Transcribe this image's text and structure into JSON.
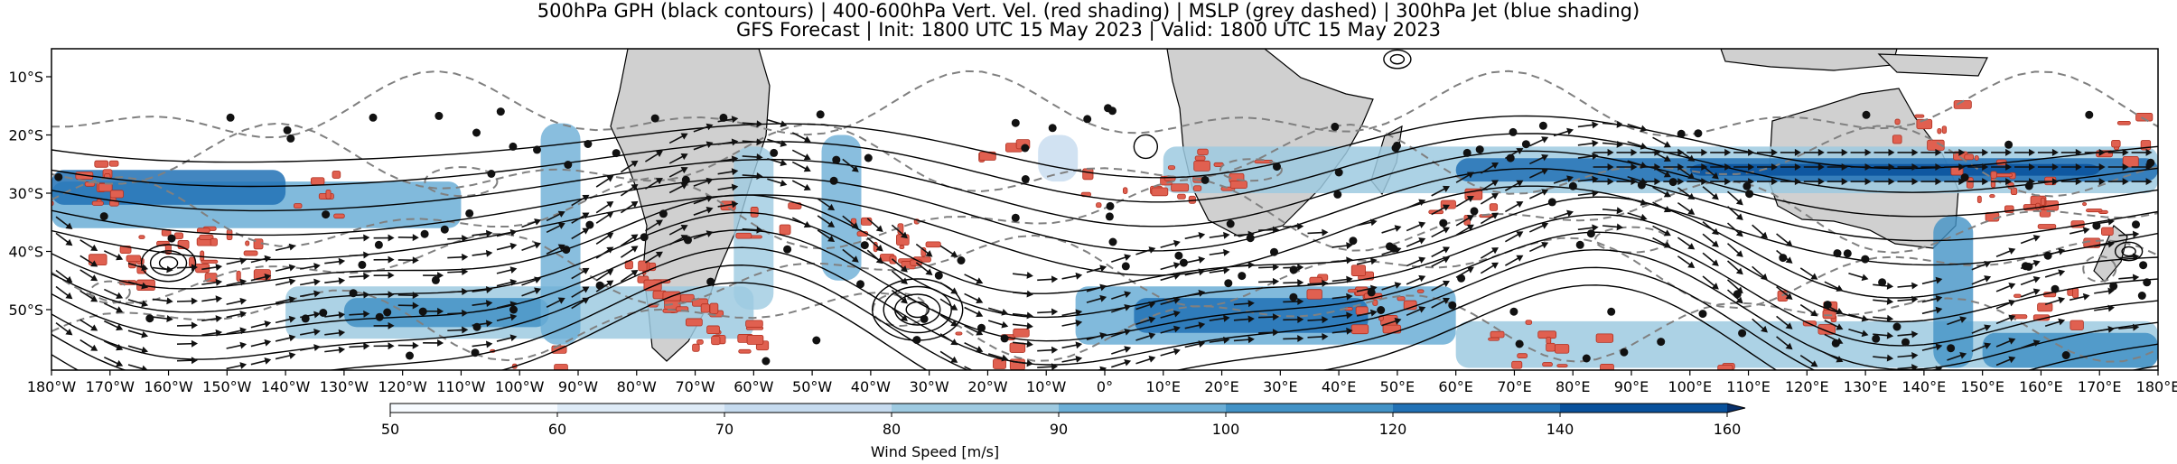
{
  "title_line1": "500hPa GPH (black contours) | 400-600hPa Vert. Vel. (red shading) | MSLP (grey dashed) | 300hPa Jet (blue shading)",
  "title_line2": "GFS Forecast | Init: 1800 UTC 15 May 2023 | Valid: 1800 UTC 15 May 2023",
  "lon_ticks": [
    "180°W",
    "170°W",
    "160°W",
    "150°W",
    "140°W",
    "130°W",
    "120°W",
    "110°W",
    "100°W",
    "90°W",
    "80°W",
    "70°W",
    "60°W",
    "50°W",
    "40°W",
    "30°W",
    "20°W",
    "10°W",
    "0°",
    "10°E",
    "20°E",
    "30°E",
    "40°E",
    "50°E",
    "60°E",
    "70°E",
    "80°E",
    "90°E",
    "100°E",
    "110°E",
    "120°E",
    "130°E",
    "140°E",
    "150°E",
    "160°E",
    "170°E",
    "180°E"
  ],
  "lat_ticks": [
    "10°S",
    "20°S",
    "30°S",
    "40°S",
    "50°S"
  ],
  "colorbar": {
    "ticks": [
      "50",
      "60",
      "70",
      "80",
      "90",
      "100",
      "120",
      "140",
      "160"
    ],
    "label": "Wind Speed [m/s]",
    "colors": [
      "#f7fbff",
      "#deebf7",
      "#c6dbef",
      "#9ecae1",
      "#6baed6",
      "#4292c6",
      "#2171b5",
      "#08519c",
      "#08306b"
    ]
  },
  "style": {
    "vertical_velocity_color": "#e06050",
    "land_color": "#d0d0d0",
    "gph_contour_color": "#000000",
    "mslp_contour_color": "#808080"
  }
}
